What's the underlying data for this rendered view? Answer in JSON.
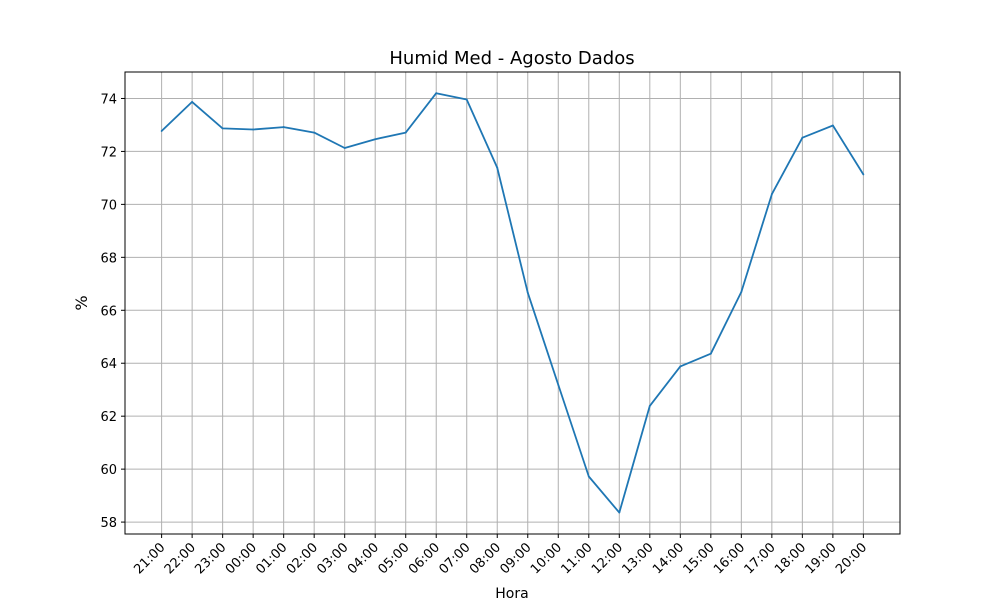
{
  "chart_data": {
    "type": "line",
    "title": "Humid Med - Agosto Dados",
    "xlabel": "Hora",
    "ylabel": "%",
    "ylim": [
      57.55,
      75.0
    ],
    "yticks": [
      58,
      60,
      62,
      64,
      66,
      68,
      70,
      72,
      74
    ],
    "grid": true,
    "colors": {
      "line": "#1f77b4",
      "grid": "#b0b0b0",
      "axes": "#000000"
    },
    "tick_labels": [
      "21:00",
      "22:00",
      "23:00",
      "00:00",
      "01:00",
      "02:00",
      "03:00",
      "04:00",
      "05:00",
      "06:00",
      "07:00",
      "08:00",
      "09:00",
      "10:00",
      "11:00",
      "12:00",
      "13:00",
      "14:00",
      "15:00",
      "16:00",
      "17:00",
      "18:00",
      "19:00",
      "20:00"
    ],
    "series": [
      {
        "values": [
          72.77,
          73.87,
          72.87,
          72.83,
          72.92,
          72.71,
          72.13,
          72.46,
          72.71,
          74.2,
          73.96,
          71.39,
          66.66,
          63.18,
          59.72,
          58.36,
          62.39,
          63.88,
          64.36,
          66.69,
          70.39,
          72.52,
          72.98,
          71.13
        ]
      }
    ]
  }
}
